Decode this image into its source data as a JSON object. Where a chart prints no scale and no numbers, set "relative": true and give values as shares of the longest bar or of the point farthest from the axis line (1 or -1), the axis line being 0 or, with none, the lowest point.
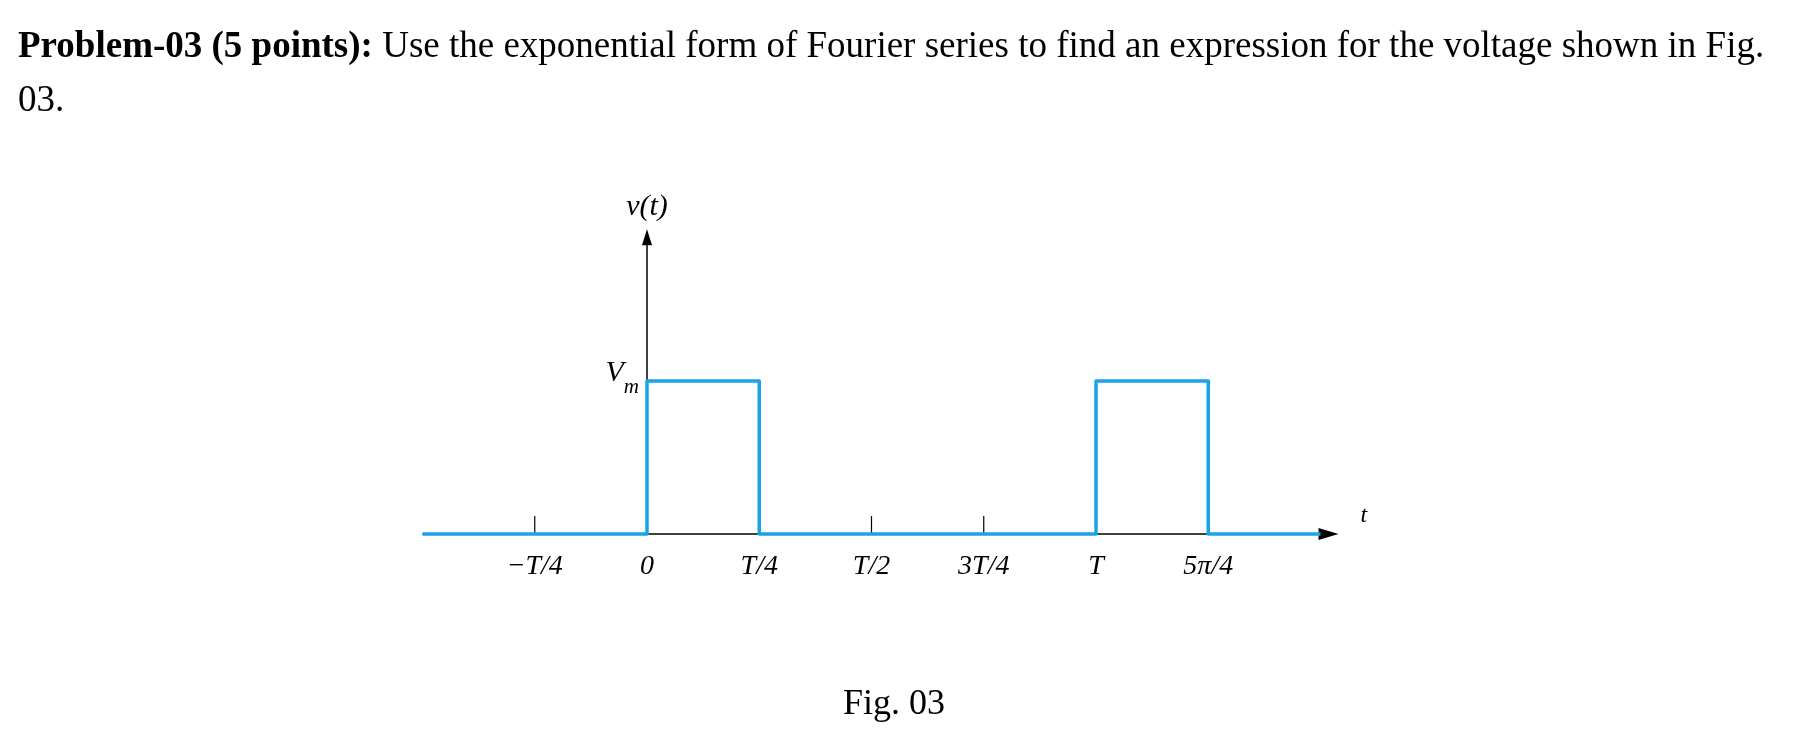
{
  "chart_data": {
    "type": "step",
    "title": "Problem-03 (5 points):",
    "subtitle": "Use the exponential form of Fourier series to find an expression for the voltage shown in Fig. 03.",
    "xlabel": "t",
    "categories": [
      null,
      "−T/4",
      "0",
      "T/4",
      "T/2",
      "3T/4",
      "T",
      "5π/4",
      null
    ],
    "series": [
      {
        "color": "#1aa3e6",
        "values": [
          0,
          0,
          1,
          0,
          0,
          0,
          1,
          0,
          0
        ]
      }
    ],
    "relative": true,
    "annotations": [
      "v(t)",
      "V$_{m}$",
      "Fig. 03"
    ]
  }
}
